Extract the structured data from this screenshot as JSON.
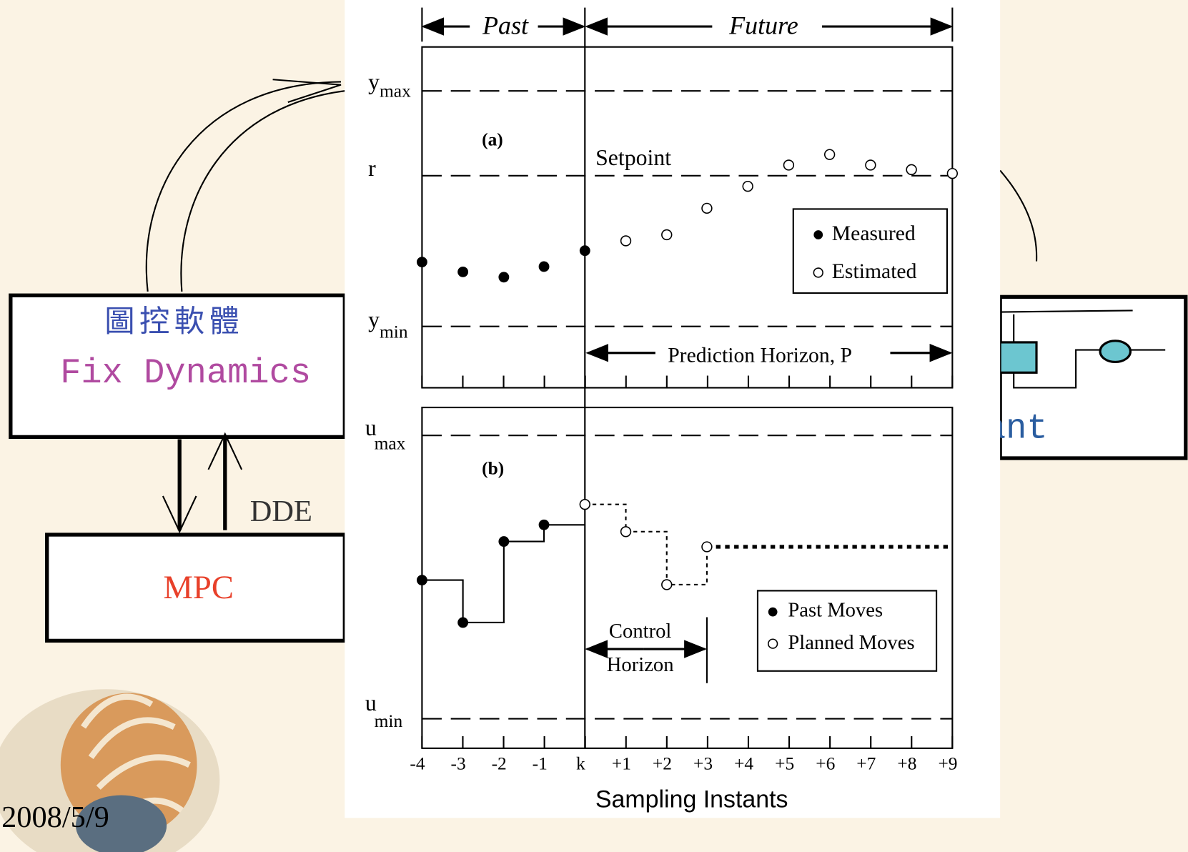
{
  "left_diagram": {
    "software_cn": "圖控軟體",
    "software_en": "Fix Dynamics",
    "dde": "DDE",
    "mpc": "MPC",
    "plant_partial": "ant"
  },
  "date": "2008/5/9",
  "figure": {
    "past": "Past",
    "future": "Future",
    "panel_a": {
      "label": "(a)",
      "y_max": {
        "base": "y",
        "sub": "max"
      },
      "r": "r",
      "setpoint": "Setpoint",
      "y_min": {
        "base": "y",
        "sub": "min"
      },
      "legend": [
        "Measured",
        "Estimated"
      ],
      "prediction_horizon": "Prediction Horizon, P"
    },
    "panel_b": {
      "label": "(b)",
      "u_max": {
        "base": "u",
        "sub": "max"
      },
      "u_min": {
        "base": "u",
        "sub": "min"
      },
      "legend": [
        "Past Moves",
        "Planned Moves"
      ],
      "control_horizon": [
        "Control",
        "Horizon"
      ]
    },
    "x_ticks": [
      "-4",
      "-3",
      "-2",
      "-1",
      "k",
      "+1",
      "+2",
      "+3",
      "+4",
      "+5",
      "+6",
      "+7",
      "+8",
      "+9"
    ],
    "x_label": "Sampling Instants"
  }
}
